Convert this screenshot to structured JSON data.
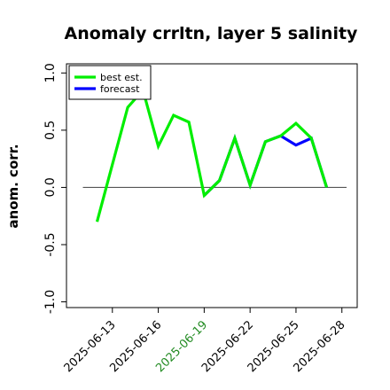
{
  "chart_data": {
    "type": "line",
    "title": "Anomaly crrltn, layer 5 salinity",
    "xlabel": "",
    "ylabel": "anom. corr.",
    "ylim": [
      -1.05,
      1.08
    ],
    "xlim": [
      "2025-06-10",
      "2025-06-29"
    ],
    "x_tick_labels": [
      "2025-06-13",
      "2025-06-16",
      "2025-06-19",
      "2025-06-22",
      "2025-06-25",
      "2025-06-28"
    ],
    "highlighted_tick": "2025-06-19",
    "y_tick_labels": [
      "-1.0",
      "-0.5",
      "0.0",
      "0.5",
      "1.0"
    ],
    "y_ticks": [
      -1.0,
      -0.5,
      0.0,
      0.5,
      1.0
    ],
    "reference_line": 0.0,
    "grid": false,
    "legend_position": "top-left",
    "x": [
      "2025-06-12",
      "2025-06-13",
      "2025-06-14",
      "2025-06-15",
      "2025-06-16",
      "2025-06-17",
      "2025-06-18",
      "2025-06-19",
      "2025-06-20",
      "2025-06-21",
      "2025-06-22",
      "2025-06-23",
      "2025-06-24",
      "2025-06-25",
      "2025-06-26",
      "2025-06-27"
    ],
    "series": [
      {
        "name": "forecast",
        "color": "#0000ff",
        "values": [
          null,
          null,
          null,
          null,
          null,
          null,
          null,
          -0.07,
          0.06,
          0.43,
          0.02,
          0.4,
          0.45,
          0.37,
          0.43,
          0.0
        ]
      },
      {
        "name": "best est.",
        "color": "#00ee00",
        "values": [
          -0.3,
          0.2,
          0.7,
          0.85,
          0.36,
          0.63,
          0.57,
          -0.07,
          0.06,
          0.43,
          0.02,
          0.4,
          0.45,
          0.56,
          0.43,
          0.0
        ]
      }
    ]
  }
}
